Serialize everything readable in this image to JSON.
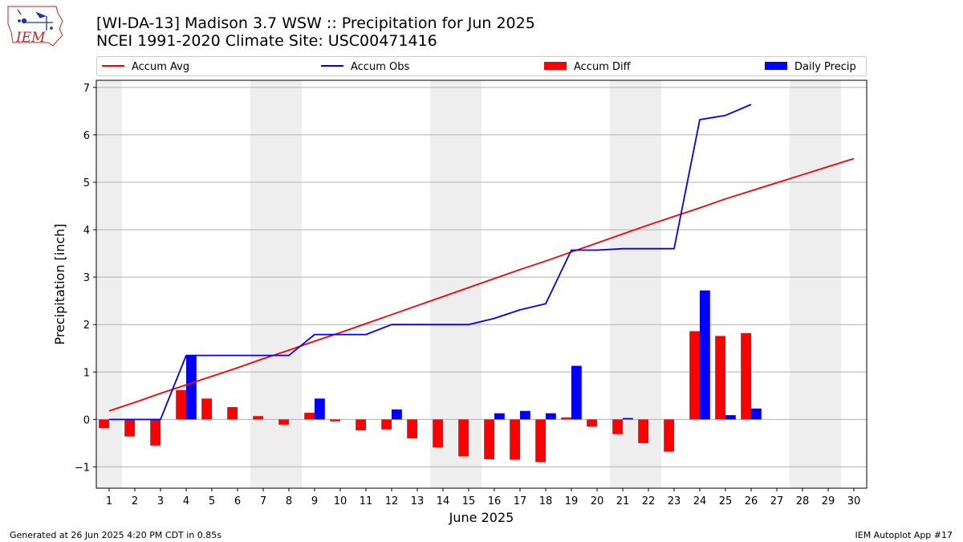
{
  "header": {
    "title_line1": "[WI-DA-13] Madison 3.7 WSW :: Precipitation for Jun 2025",
    "title_line2": "NCEI 1991-2020 Climate Site: USC00471416",
    "logo_text": "IEM"
  },
  "footer": {
    "left": "Generated at 26 Jun 2025 4:20 PM CDT in 0.85s",
    "right": "IEM Autoplot App #17"
  },
  "chart_data": {
    "type": "bar",
    "xlabel": "June 2025",
    "ylabel": "Precipitation [inch]",
    "xlim": [
      0.5,
      30.5
    ],
    "ylim": [
      -1.45,
      7.15
    ],
    "yticks": [
      -1,
      0,
      1,
      2,
      3,
      4,
      5,
      6,
      7
    ],
    "ytick_labels": [
      "−1",
      "0",
      "1",
      "2",
      "3",
      "4",
      "5",
      "6",
      "7"
    ],
    "grid": "horizontal",
    "legend_position": "top, above plot",
    "weekend_shading": [
      [
        0.5,
        1.5
      ],
      [
        6.5,
        8.5
      ],
      [
        13.5,
        15.5
      ],
      [
        20.5,
        22.5
      ],
      [
        27.5,
        29.5
      ]
    ],
    "days": [
      1,
      2,
      3,
      4,
      5,
      6,
      7,
      8,
      9,
      10,
      11,
      12,
      13,
      14,
      15,
      16,
      17,
      18,
      19,
      20,
      21,
      22,
      23,
      24,
      25,
      26,
      27,
      28,
      29,
      30
    ],
    "series": [
      {
        "name": "Accum Avg",
        "kind": "line",
        "color": "#ff0000",
        "values": [
          0.18,
          0.36,
          0.55,
          0.73,
          0.91,
          1.09,
          1.28,
          1.46,
          1.65,
          1.83,
          2.02,
          2.21,
          2.4,
          2.59,
          2.78,
          2.97,
          3.16,
          3.34,
          3.53,
          3.72,
          3.91,
          4.1,
          4.28,
          4.46,
          4.65,
          4.82,
          4.99,
          5.16,
          5.33,
          5.5
        ]
      },
      {
        "name": "Accum Obs",
        "kind": "line",
        "color": "#0000ff",
        "values": [
          0.0,
          0.0,
          0.0,
          1.35,
          1.35,
          1.35,
          1.35,
          1.35,
          1.79,
          1.79,
          1.79,
          2.0,
          2.0,
          2.0,
          2.0,
          2.13,
          2.31,
          2.44,
          3.57,
          3.57,
          3.6,
          3.6,
          3.6,
          6.32,
          6.41,
          6.64
        ]
      },
      {
        "name": "Accum Diff",
        "kind": "bar",
        "color": "#ff0000",
        "values": [
          -0.18,
          -0.36,
          -0.55,
          0.62,
          0.44,
          0.26,
          0.07,
          -0.11,
          0.14,
          -0.04,
          -0.23,
          -0.21,
          -0.4,
          -0.59,
          -0.78,
          -0.84,
          -0.85,
          -0.9,
          0.04,
          -0.15,
          -0.31,
          -0.5,
          -0.68,
          1.86,
          1.76,
          1.82
        ]
      },
      {
        "name": "Daily Precip",
        "kind": "bar",
        "color": "#0000ff",
        "values": [
          0.0,
          0.0,
          0.0,
          1.35,
          0.0,
          0.0,
          0.0,
          0.0,
          0.44,
          0.0,
          0.0,
          0.21,
          0.0,
          0.0,
          0.0,
          0.13,
          0.18,
          0.13,
          1.13,
          0.0,
          0.03,
          0.0,
          0.0,
          2.72,
          0.09,
          0.23
        ]
      }
    ]
  }
}
